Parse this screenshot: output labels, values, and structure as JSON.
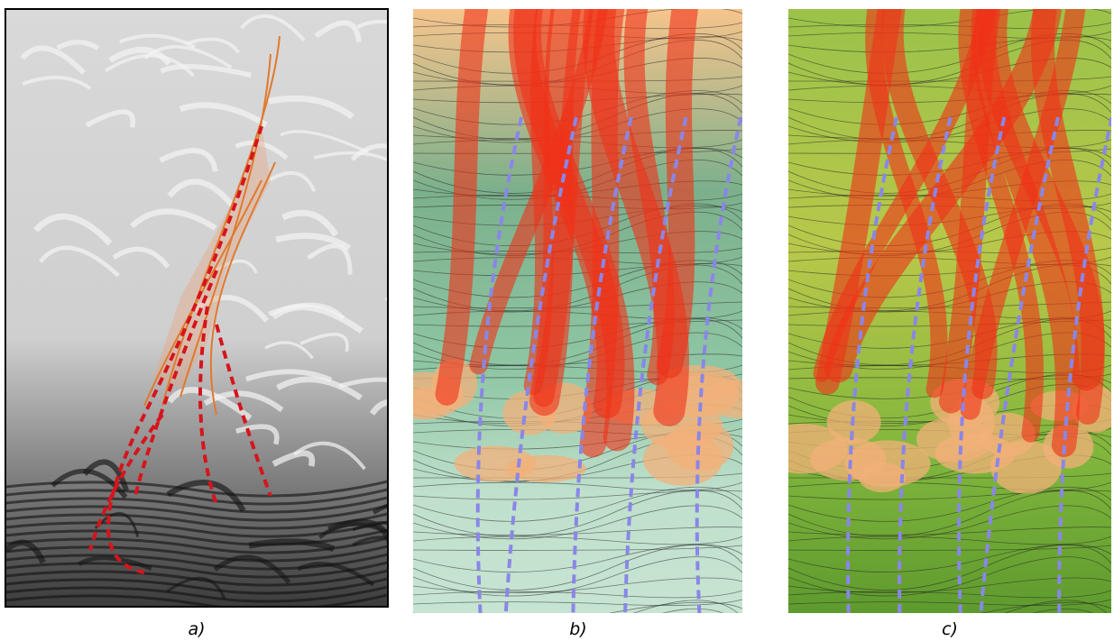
{
  "panels": [
    {
      "caption": "a)"
    },
    {
      "caption": "b)"
    },
    {
      "caption": "c)"
    }
  ]
}
